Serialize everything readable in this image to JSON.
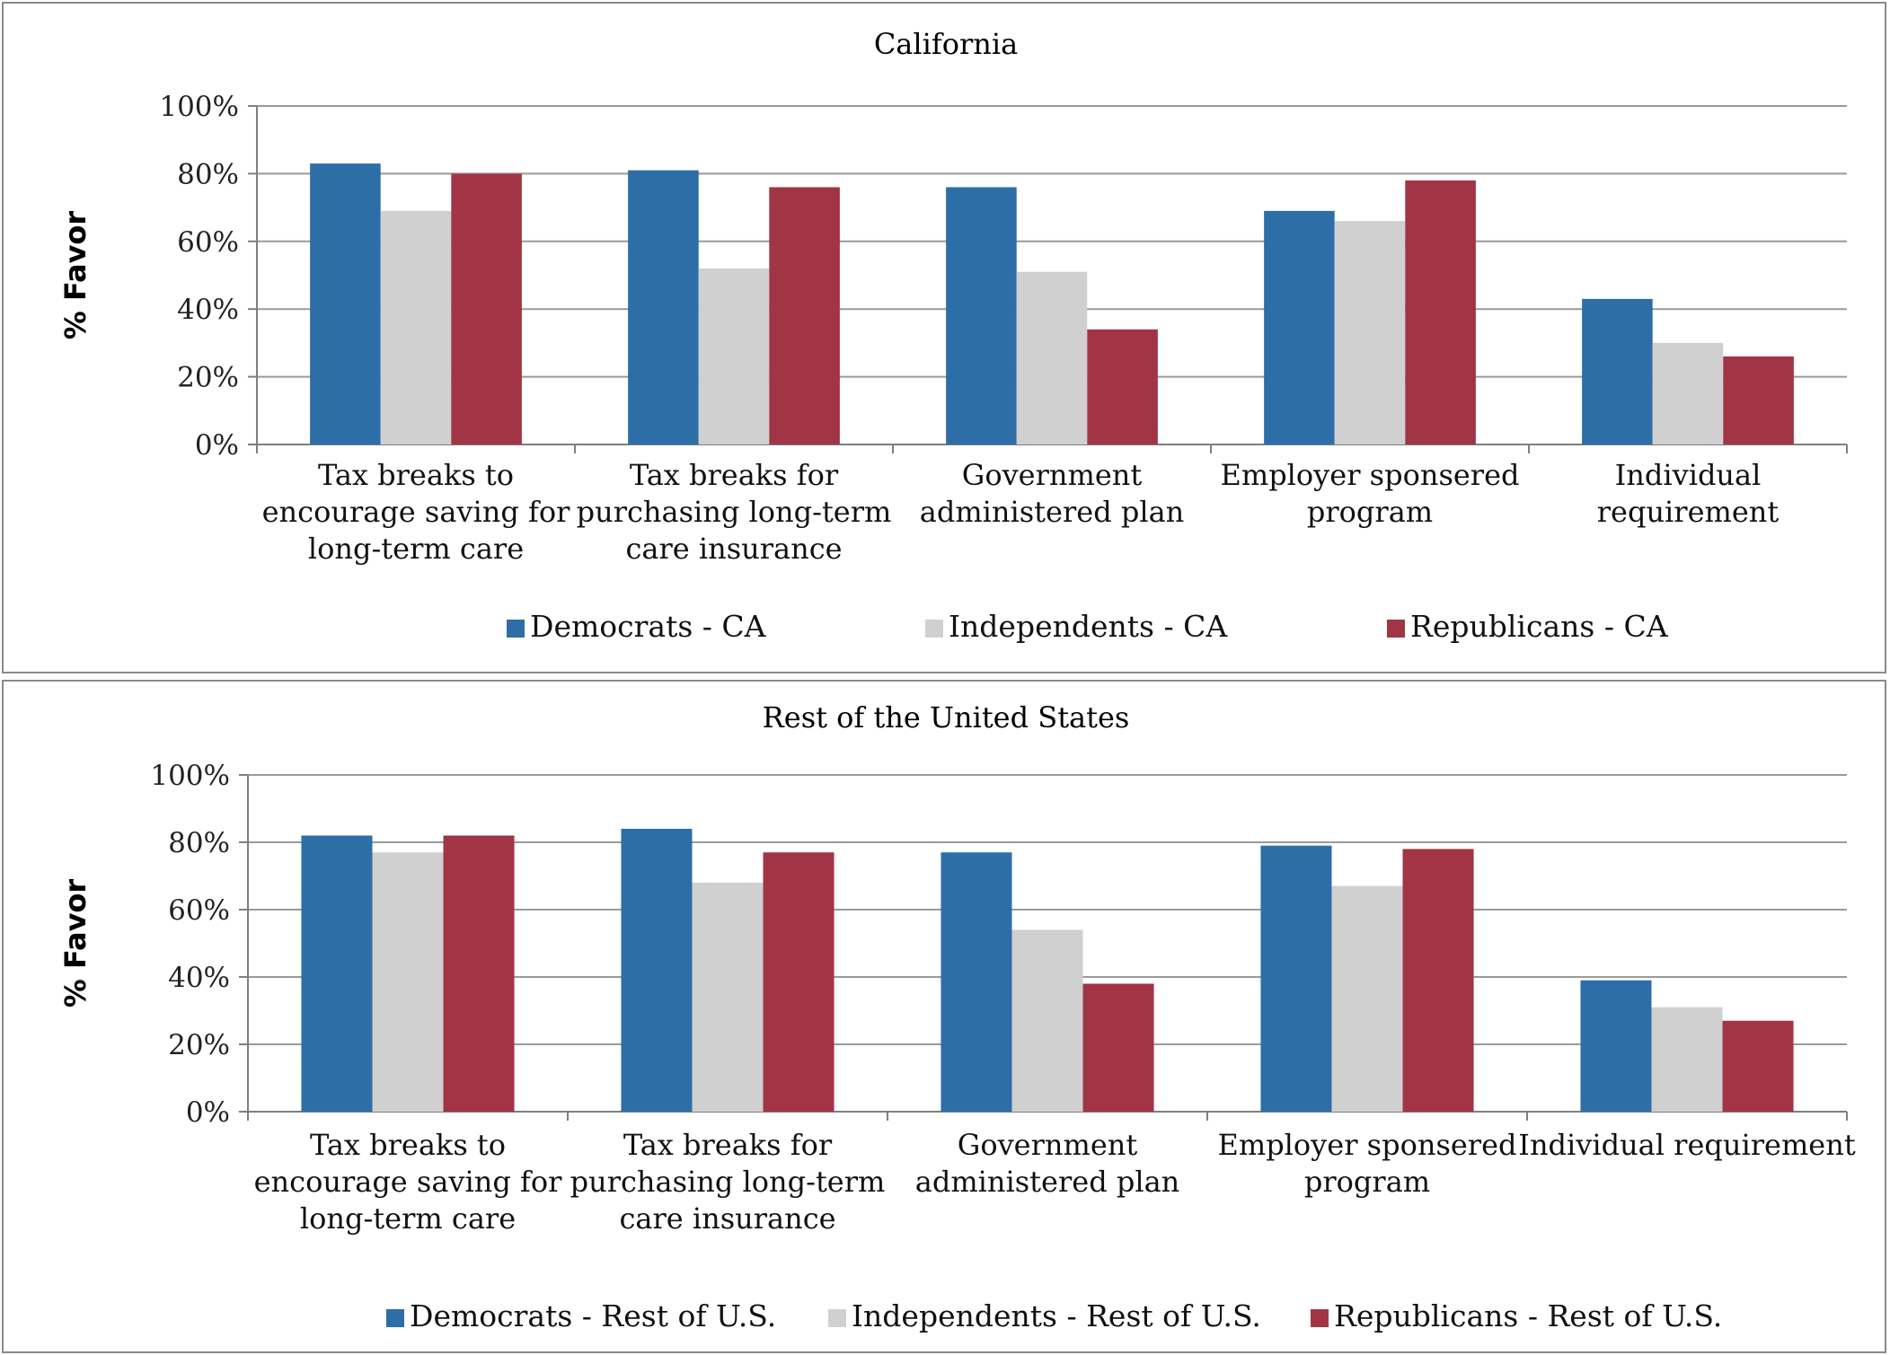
{
  "colors": {
    "democrats": "#2e6ea6",
    "independents": "#d0d0d0",
    "republicans": "#a13546",
    "grid": "#9a9a9a",
    "axis": "#7f7f7f"
  },
  "chart_data": [
    {
      "type": "bar",
      "title": "California",
      "ylabel": "% Favor",
      "ylim": [
        0,
        100
      ],
      "yticks": [
        "0%",
        "20%",
        "40%",
        "60%",
        "80%",
        "100%"
      ],
      "categories": [
        [
          "Tax breaks to",
          "encourage saving for",
          "long-term care"
        ],
        [
          "Tax breaks for",
          "purchasing long-term",
          "care insurance"
        ],
        [
          "Government",
          "administered plan"
        ],
        [
          "Employer sponsered",
          "program"
        ],
        [
          "Individual",
          "requirement"
        ]
      ],
      "series": [
        {
          "name": "Democrats - CA",
          "color": "#2e6ea6",
          "values": [
            83,
            81,
            76,
            69,
            43
          ]
        },
        {
          "name": "Independents - CA",
          "color": "#d0d0d0",
          "values": [
            69,
            52,
            51,
            66,
            30
          ]
        },
        {
          "name": "Republicans - CA",
          "color": "#a13546",
          "values": [
            80,
            76,
            34,
            78,
            26
          ]
        }
      ],
      "grid": true,
      "legend": "bottom"
    },
    {
      "type": "bar",
      "title": "Rest of the United States",
      "ylabel": "% Favor",
      "ylim": [
        0,
        100
      ],
      "yticks": [
        "0%",
        "20%",
        "40%",
        "60%",
        "80%",
        "100%"
      ],
      "categories": [
        [
          "Tax breaks to",
          "encourage saving for",
          "long-term care"
        ],
        [
          "Tax breaks for",
          "purchasing long-term",
          "care insurance"
        ],
        [
          "Government",
          "administered plan"
        ],
        [
          "Employer sponsered",
          "program"
        ],
        [
          "Individual requirement"
        ]
      ],
      "series": [
        {
          "name": "Democrats - Rest of U.S.",
          "color": "#2e6ea6",
          "values": [
            82,
            84,
            77,
            79,
            39
          ]
        },
        {
          "name": "Independents - Rest of U.S.",
          "color": "#d0d0d0",
          "values": [
            77,
            68,
            54,
            67,
            31
          ]
        },
        {
          "name": "Republicans - Rest of U.S.",
          "color": "#a13546",
          "values": [
            82,
            77,
            38,
            78,
            27
          ]
        }
      ],
      "grid": true,
      "legend": "bottom"
    }
  ]
}
